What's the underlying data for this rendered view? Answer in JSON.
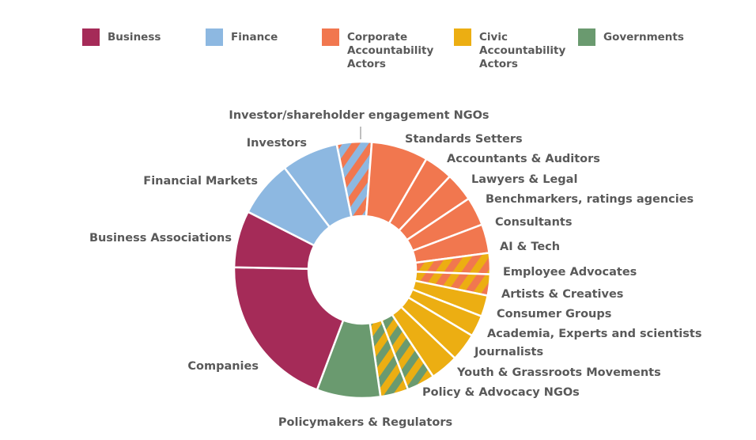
{
  "chart_data": {
    "type": "pie",
    "variant": "donut",
    "title": "",
    "legend_position": "top",
    "legend": [
      {
        "name": "Business",
        "lines": [
          "Business"
        ],
        "color": "#a52b58"
      },
      {
        "name": "Finance",
        "lines": [
          "Finance"
        ],
        "color": "#8db8e1"
      },
      {
        "name": "Corporate Accountability Actors",
        "lines": [
          "Corporate",
          "Accountability",
          "Actors"
        ],
        "color": "#f1774f"
      },
      {
        "name": "Civic Accountability Actors",
        "lines": [
          "Civic",
          "Accountability",
          "Actors"
        ],
        "color": "#ecae12"
      },
      {
        "name": "Governments",
        "lines": [
          "Governments"
        ],
        "color": "#6a9a6f"
      }
    ],
    "slices": [
      {
        "label": "Investor/shareholder engagement NGOs",
        "value": 4.6,
        "fill": "#8db8e1",
        "stripe": "#f1774f"
      },
      {
        "label": "Standards Setters",
        "value": 7.5,
        "fill": "#f1774f"
      },
      {
        "label": "Accountants & Auditors",
        "value": 3.8,
        "fill": "#f1774f"
      },
      {
        "label": "Lawyers & Legal",
        "value": 3.8,
        "fill": "#f1774f"
      },
      {
        "label": "Benchmarkers, ratings agencies",
        "value": 3.8,
        "fill": "#f1774f"
      },
      {
        "label": "Consultants",
        "value": 3.8,
        "fill": "#f1774f"
      },
      {
        "label": "AI & Tech",
        "value": 2.8,
        "fill": "#f1774f",
        "stripe": "#ecae12"
      },
      {
        "label": "Employee Advocates",
        "value": 2.8,
        "fill": "#f1774f",
        "stripe": "#ecae12"
      },
      {
        "label": "Artists & Creatives",
        "value": 2.8,
        "fill": "#ecae12"
      },
      {
        "label": "Consumer Groups",
        "value": 2.8,
        "fill": "#ecae12"
      },
      {
        "label": "Academia, Experts and scientists",
        "value": 3.7,
        "fill": "#ecae12"
      },
      {
        "label": "Journalists",
        "value": 3.7,
        "fill": "#ecae12"
      },
      {
        "label": "Youth & Grassroots Movements",
        "value": 3.7,
        "fill": "#ecae12",
        "stripe": "#6a9a6f"
      },
      {
        "label": "Policy & Advocacy NGOs",
        "value": 3.7,
        "fill": "#ecae12",
        "stripe": "#6a9a6f"
      },
      {
        "label": "Policymakers & Regulators",
        "value": 8.4,
        "fill": "#6a9a6f"
      },
      {
        "label": "Companies",
        "value": 20.5,
        "fill": "#a52b58"
      },
      {
        "label": "Business Associations",
        "value": 7.5,
        "fill": "#a52b58"
      },
      {
        "label": "Financial Markets",
        "value": 7.5,
        "fill": "#8db8e1"
      },
      {
        "label": "Investors",
        "value": 7.5,
        "fill": "#8db8e1"
      }
    ]
  }
}
